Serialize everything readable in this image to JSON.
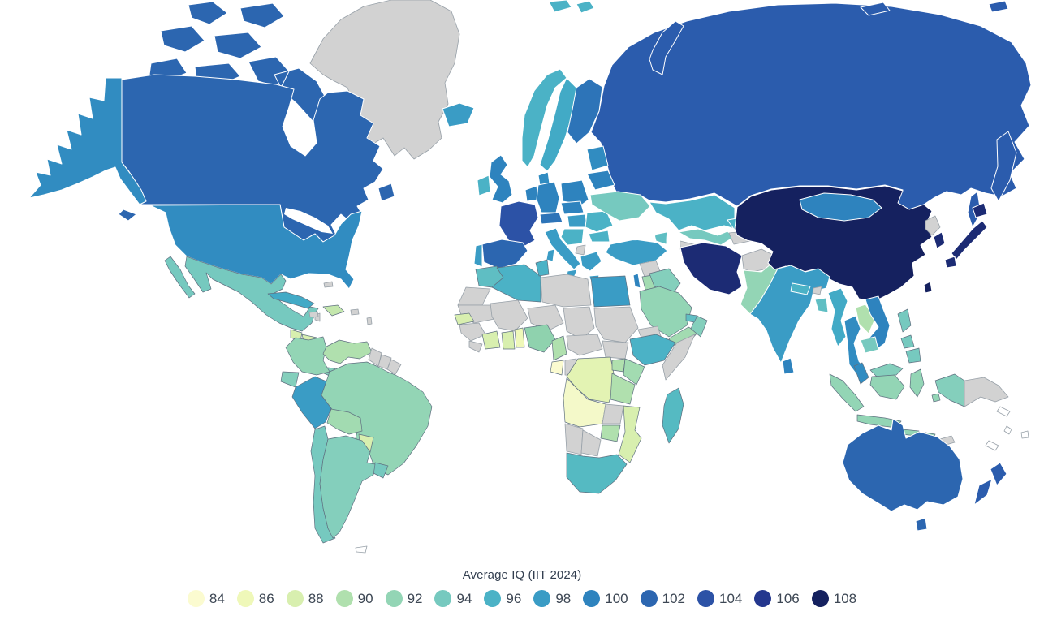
{
  "chart_data": {
    "type": "choropleth",
    "title": "Average IQ (IIT 2024)",
    "scale": {
      "values": [
        84,
        86,
        88,
        90,
        92,
        94,
        96,
        98,
        100,
        102,
        104,
        106,
        108
      ],
      "colors": [
        "#fbfbd0",
        "#eff8b9",
        "#d8efaf",
        "#b0e0ae",
        "#93d5b5",
        "#76c9bf",
        "#4bb2c6",
        "#3a9cc5",
        "#2e83be",
        "#2c66b0",
        "#2c52a6",
        "#24378e",
        "#15215f"
      ]
    },
    "no_data_color": "#d2d2d2",
    "legend_position": "bottom-center",
    "countries": {
      "canada": {
        "name": "Canada",
        "iq": 102,
        "color": "#2c66b0"
      },
      "usa": {
        "name": "United States",
        "iq": 99,
        "color": "#318cc1"
      },
      "greenland": {
        "name": "Greenland",
        "iq": null,
        "color": "#d2d2d2"
      },
      "mexico": {
        "name": "Mexico",
        "iq": 94,
        "color": "#76c9bf"
      },
      "belize": {
        "name": "Belize",
        "iq": null,
        "color": "#d2d2d2"
      },
      "guatemala": {
        "name": "Guatemala",
        "iq": 88,
        "color": "#d8efaf"
      },
      "honduras": {
        "name": "Honduras",
        "iq": 88,
        "color": "#d8efaf"
      },
      "nicaragua": {
        "name": "Nicaragua",
        "iq": 86,
        "color": "#eff8b9"
      },
      "costa_rica": {
        "name": "Costa Rica",
        "iq": 90,
        "color": "#b0e0ae"
      },
      "panama": {
        "name": "Panama",
        "iq": 93,
        "color": "#84cfbc"
      },
      "cuba": {
        "name": "Cuba",
        "iq": 97,
        "color": "#42aac6"
      },
      "hispaniola": {
        "name": "Dominican Republic",
        "iq": 89,
        "color": "#c4e7ad"
      },
      "jamaica": {
        "name": "Jamaica",
        "iq": null,
        "color": "#d2d2d2"
      },
      "bahamas": {
        "name": "Bahamas",
        "iq": null,
        "color": "#d2d2d2"
      },
      "puerto_rico": {
        "name": "Puerto Rico",
        "iq": null,
        "color": "#d2d2d2"
      },
      "lesser_antilles": {
        "name": "Lesser Antilles",
        "iq": null,
        "color": "#d2d2d2"
      },
      "colombia": {
        "name": "Colombia",
        "iq": 92,
        "color": "#93d5b5"
      },
      "venezuela": {
        "name": "Venezuela",
        "iq": 90,
        "color": "#b0e0ae"
      },
      "guyana": {
        "name": "Guyana",
        "iq": null,
        "color": "#d2d2d2"
      },
      "suriname": {
        "name": "Suriname",
        "iq": null,
        "color": "#d2d2d2"
      },
      "french_guiana": {
        "name": "French Guiana",
        "iq": null,
        "color": "#d2d2d2"
      },
      "ecuador": {
        "name": "Ecuador",
        "iq": 93,
        "color": "#84cfbc"
      },
      "peru": {
        "name": "Peru",
        "iq": 98,
        "color": "#3a9cc5"
      },
      "brazil": {
        "name": "Brazil",
        "iq": 92,
        "color": "#93d5b5"
      },
      "bolivia": {
        "name": "Bolivia",
        "iq": 91,
        "color": "#a2dbb1"
      },
      "paraguay": {
        "name": "Paraguay",
        "iq": 88,
        "color": "#d8efaf"
      },
      "uruguay": {
        "name": "Uruguay",
        "iq": 94,
        "color": "#76c9bf"
      },
      "chile": {
        "name": "Chile",
        "iq": 94,
        "color": "#76c9bf"
      },
      "argentina": {
        "name": "Argentina",
        "iq": 93,
        "color": "#84cfbc"
      },
      "falkland": {
        "name": "Falkland Islands",
        "iq": null,
        "color": "#ffffff"
      },
      "iceland": {
        "name": "Iceland",
        "iq": 98,
        "color": "#3a9cc5"
      },
      "ireland": {
        "name": "Ireland",
        "iq": 96,
        "color": "#4bb2c6"
      },
      "uk": {
        "name": "United Kingdom",
        "iq": 100,
        "color": "#2e83be"
      },
      "portugal": {
        "name": "Portugal",
        "iq": 98,
        "color": "#3a9cc5"
      },
      "spain": {
        "name": "Spain",
        "iq": 102,
        "color": "#2c66b0"
      },
      "france": {
        "name": "France",
        "iq": 104,
        "color": "#2c52a6"
      },
      "benelux": {
        "name": "Netherlands / Belgium",
        "iq": 100,
        "color": "#2e83be"
      },
      "germany": {
        "name": "Germany",
        "iq": 100,
        "color": "#2e83be"
      },
      "denmark": {
        "name": "Denmark",
        "iq": 99,
        "color": "#318cc1"
      },
      "norway": {
        "name": "Norway",
        "iq": 96,
        "color": "#4bb2c6"
      },
      "sweden": {
        "name": "Sweden",
        "iq": 97,
        "color": "#42aac6"
      },
      "finland": {
        "name": "Finland",
        "iq": 101,
        "color": "#2d74b8"
      },
      "baltics": {
        "name": "Baltic states",
        "iq": 99,
        "color": "#318cc1"
      },
      "poland": {
        "name": "Poland",
        "iq": 100,
        "color": "#2e83be"
      },
      "czechia_slovakia": {
        "name": "Czechia / Slovakia",
        "iq": 100,
        "color": "#2e83be"
      },
      "austria_switzerland": {
        "name": "Austria / Switzerland",
        "iq": 101,
        "color": "#2d74b8"
      },
      "hungary": {
        "name": "Hungary",
        "iq": 98,
        "color": "#3a9cc5"
      },
      "romania": {
        "name": "Romania",
        "iq": 96,
        "color": "#4bb2c6"
      },
      "bulgaria": {
        "name": "Bulgaria",
        "iq": 96,
        "color": "#4bb2c6"
      },
      "balkans": {
        "name": "Western Balkans",
        "iq": 96,
        "color": "#4bb2c6"
      },
      "albania_nmk": {
        "name": "Albania / North Macedonia",
        "iq": null,
        "color": "#d2d2d2"
      },
      "greece": {
        "name": "Greece",
        "iq": 98,
        "color": "#3a9cc5"
      },
      "italy": {
        "name": "Italy",
        "iq": 98,
        "color": "#3a9cc5"
      },
      "ukraine": {
        "name": "Ukraine",
        "iq": 94,
        "color": "#76c9bf"
      },
      "belarus": {
        "name": "Belarus",
        "iq": 100,
        "color": "#2e83be"
      },
      "russia": {
        "name": "Russia",
        "iq": 103,
        "color": "#2b5cad"
      },
      "svalbard": {
        "name": "Svalbard",
        "iq": 96,
        "color": "#4bb2c6"
      },
      "kazakhstan": {
        "name": "Kazakhstan",
        "iq": 96,
        "color": "#4bb2c6"
      },
      "uzbekistan": {
        "name": "Uzbekistan",
        "iq": 94,
        "color": "#76c9bf"
      },
      "turkmenistan": {
        "name": "Turkmenistan",
        "iq": null,
        "color": "#d2d2d2"
      },
      "kyrgyzstan": {
        "name": "Kyrgyzstan",
        "iq": 96,
        "color": "#4bb2c6"
      },
      "tajikistan": {
        "name": "Tajikistan",
        "iq": null,
        "color": "#d2d2d2"
      },
      "caucasus": {
        "name": "Caucasus states",
        "iq": 95,
        "color": "#5fbec3"
      },
      "turkey": {
        "name": "Turkey",
        "iq": 98,
        "color": "#3a9cc5"
      },
      "syria": {
        "name": "Syria",
        "iq": null,
        "color": "#d2d2d2"
      },
      "israel": {
        "name": "Israel",
        "iq": 100,
        "color": "#2e83be"
      },
      "jordan": {
        "name": "Jordan",
        "iq": 91,
        "color": "#a2dbb1"
      },
      "iraq": {
        "name": "Iraq",
        "iq": 93,
        "color": "#84cfbc"
      },
      "saudi_arabia": {
        "name": "Saudi Arabia",
        "iq": 92,
        "color": "#93d5b5"
      },
      "yemen": {
        "name": "Yemen",
        "iq": 91,
        "color": "#a2dbb1"
      },
      "oman": {
        "name": "Oman",
        "iq": 93,
        "color": "#84cfbc"
      },
      "uae": {
        "name": "United Arab Emirates",
        "iq": 95,
        "color": "#5fbec3"
      },
      "iran": {
        "name": "Iran",
        "iq": 107,
        "color": "#1c2b74"
      },
      "afghanistan": {
        "name": "Afghanistan",
        "iq": null,
        "color": "#d2d2d2"
      },
      "pakistan": {
        "name": "Pakistan",
        "iq": 92,
        "color": "#93d5b5"
      },
      "india": {
        "name": "India",
        "iq": 98,
        "color": "#3a9cc5"
      },
      "nepal": {
        "name": "Nepal",
        "iq": 96,
        "color": "#4bb2c6"
      },
      "bhutan": {
        "name": "Bhutan",
        "iq": null,
        "color": "#d2d2d2"
      },
      "bangladesh": {
        "name": "Bangladesh",
        "iq": 95,
        "color": "#5fbec3"
      },
      "sri_lanka": {
        "name": "Sri Lanka",
        "iq": 100,
        "color": "#2e83be"
      },
      "myanmar": {
        "name": "Myanmar",
        "iq": 97,
        "color": "#42aac6"
      },
      "thailand": {
        "name": "Thailand",
        "iq": 99,
        "color": "#318cc1"
      },
      "laos": {
        "name": "Laos",
        "iq": 90,
        "color": "#b0e0ae"
      },
      "vietnam": {
        "name": "Vietnam",
        "iq": 100,
        "color": "#2e83be"
      },
      "cambodia": {
        "name": "Cambodia",
        "iq": 94,
        "color": "#76c9bf"
      },
      "malaysia": {
        "name": "Malaysia (Peninsular)",
        "iq": 99,
        "color": "#318cc1"
      },
      "malaysia_east": {
        "name": "Malaysia (East)",
        "iq": 93,
        "color": "#84cfbc"
      },
      "indonesia": {
        "name": "Indonesia",
        "iq": 92,
        "color": "#93d5b5"
      },
      "indonesia_papua": {
        "name": "Indonesia (Papua)",
        "iq": 93,
        "color": "#84cfbc"
      },
      "timor_leste": {
        "name": "Timor-Leste",
        "iq": null,
        "color": "#d2d2d2"
      },
      "png": {
        "name": "Papua New Guinea",
        "iq": null,
        "color": "#d2d2d2"
      },
      "philippines": {
        "name": "Philippines",
        "iq": 94,
        "color": "#76c9bf"
      },
      "china": {
        "name": "China",
        "iq": 108,
        "color": "#15215f"
      },
      "mongolia": {
        "name": "Mongolia",
        "iq": 100,
        "color": "#2e83be"
      },
      "taiwan": {
        "name": "Taiwan",
        "iq": 108,
        "color": "#15215f"
      },
      "north_korea": {
        "name": "North Korea",
        "iq": null,
        "color": "#d2d2d2"
      },
      "south_korea": {
        "name": "South Korea",
        "iq": 107,
        "color": "#1c2b74"
      },
      "japan": {
        "name": "Japan",
        "iq": 107,
        "color": "#1c2b74"
      },
      "australia": {
        "name": "Australia",
        "iq": 102,
        "color": "#2c66b0"
      },
      "new_zealand": {
        "name": "New Zealand",
        "iq": 103,
        "color": "#2b5cad"
      },
      "pacific_islands": {
        "name": "Pacific islands",
        "iq": null,
        "color": "#ffffff"
      },
      "morocco": {
        "name": "Morocco",
        "iq": 95,
        "color": "#5fbec3"
      },
      "western_sahara": {
        "name": "Western Sahara",
        "iq": null,
        "color": "#d2d2d2"
      },
      "algeria": {
        "name": "Algeria",
        "iq": 96,
        "color": "#4bb2c6"
      },
      "tunisia": {
        "name": "Tunisia",
        "iq": 96,
        "color": "#4bb2c6"
      },
      "libya": {
        "name": "Libya",
        "iq": null,
        "color": "#d2d2d2"
      },
      "egypt": {
        "name": "Egypt",
        "iq": 98,
        "color": "#3a9cc5"
      },
      "mauritania": {
        "name": "Mauritania",
        "iq": null,
        "color": "#d2d2d2"
      },
      "mali": {
        "name": "Mali",
        "iq": null,
        "color": "#d2d2d2"
      },
      "niger": {
        "name": "Niger",
        "iq": null,
        "color": "#d2d2d2"
      },
      "chad": {
        "name": "Chad",
        "iq": null,
        "color": "#d2d2d2"
      },
      "sudan": {
        "name": "Sudan",
        "iq": null,
        "color": "#d2d2d2"
      },
      "senegal": {
        "name": "Senegal",
        "iq": 88,
        "color": "#d8efaf"
      },
      "guinea": {
        "name": "Guinea",
        "iq": null,
        "color": "#d2d2d2"
      },
      "sierra_leone_liberia": {
        "name": "Sierra Leone / Liberia",
        "iq": null,
        "color": "#d2d2d2"
      },
      "cote_divoire": {
        "name": "Côte d'Ivoire",
        "iq": 88,
        "color": "#d8efaf"
      },
      "ghana": {
        "name": "Ghana",
        "iq": 88,
        "color": "#d8efaf"
      },
      "togo_benin": {
        "name": "Togo / Benin",
        "iq": 86,
        "color": "#eff8b9"
      },
      "nigeria": {
        "name": "Nigeria",
        "iq": 92,
        "color": "#8fd2ae"
      },
      "cameroon": {
        "name": "Cameroon",
        "iq": 90,
        "color": "#b0e0ae"
      },
      "gabon": {
        "name": "Gabon",
        "iq": 84,
        "color": "#fbfbd0"
      },
      "congo": {
        "name": "Republic of the Congo",
        "iq": null,
        "color": "#d2d2d2"
      },
      "drc": {
        "name": "DR Congo",
        "iq": 87,
        "color": "#e3f3b3"
      },
      "car": {
        "name": "Central African Republic",
        "iq": null,
        "color": "#d2d2d2"
      },
      "south_sudan": {
        "name": "South Sudan",
        "iq": null,
        "color": "#d2d2d2"
      },
      "eritrea": {
        "name": "Eritrea",
        "iq": null,
        "color": "#d2d2d2"
      },
      "ethiopia": {
        "name": "Ethiopia",
        "iq": 96,
        "color": "#4bb2c6"
      },
      "somalia": {
        "name": "Somalia",
        "iq": null,
        "color": "#d2d2d2"
      },
      "uganda": {
        "name": "Uganda",
        "iq": 90,
        "color": "#b0e0ae"
      },
      "kenya": {
        "name": "Kenya",
        "iq": 91,
        "color": "#a2dbb1"
      },
      "tanzania": {
        "name": "Tanzania",
        "iq": 90,
        "color": "#b0e0ae"
      },
      "angola": {
        "name": "Angola",
        "iq": 85,
        "color": "#f4f9c9"
      },
      "zambia": {
        "name": "Zambia",
        "iq": null,
        "color": "#d2d2d2"
      },
      "zimbabwe": {
        "name": "Zimbabwe",
        "iq": 90,
        "color": "#b0e0ae"
      },
      "mozambique": {
        "name": "Mozambique",
        "iq": 88,
        "color": "#d8efaf"
      },
      "namibia": {
        "name": "Namibia",
        "iq": null,
        "color": "#d2d2d2"
      },
      "botswana": {
        "name": "Botswana",
        "iq": null,
        "color": "#d2d2d2"
      },
      "south_africa": {
        "name": "South Africa",
        "iq": 95,
        "color": "#55bac2"
      },
      "madagascar": {
        "name": "Madagascar",
        "iq": 95,
        "color": "#55bac2"
      }
    }
  },
  "legend": {
    "title": "Average IQ (IIT 2024)"
  }
}
